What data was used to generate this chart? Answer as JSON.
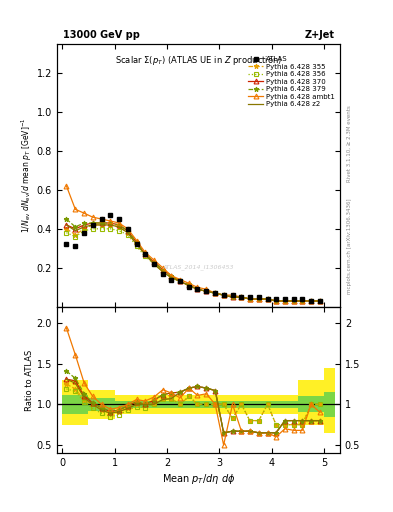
{
  "title_top": "13000 GeV pp",
  "title_right": "Z+Jet",
  "plot_title": "Scalar Σ(p_{T}) (ATLAS UE in Z production)",
  "ylabel_main": "1/N_{ev} dN_{ev}/d mean p_T [GeV]^{-1}",
  "ylabel_ratio": "Ratio to ATLAS",
  "xlabel": "Mean p_T/dη dϕ",
  "right_label_top": "Rivet 3.1.10, ≥ 2.3M events",
  "right_label_bottom": "mcplots.cern.ch [arXiv:1306.3436]",
  "watermark": "ATLAS_2014_I1306453",
  "xdata": [
    0.08,
    0.25,
    0.42,
    0.58,
    0.75,
    0.92,
    1.08,
    1.25,
    1.42,
    1.58,
    1.75,
    1.92,
    2.08,
    2.25,
    2.42,
    2.58,
    2.75,
    2.92,
    3.08,
    3.25,
    3.42,
    3.58,
    3.75,
    3.92,
    4.08,
    4.25,
    4.42,
    4.58,
    4.75,
    4.92
  ],
  "atlas_y": [
    0.32,
    0.31,
    0.38,
    0.42,
    0.45,
    0.47,
    0.45,
    0.4,
    0.32,
    0.27,
    0.22,
    0.17,
    0.14,
    0.13,
    0.1,
    0.09,
    0.08,
    0.07,
    0.06,
    0.06,
    0.05,
    0.05,
    0.05,
    0.04,
    0.04,
    0.04,
    0.04,
    0.04,
    0.03,
    0.03
  ],
  "py355_y": [
    0.4,
    0.37,
    0.4,
    0.42,
    0.42,
    0.42,
    0.41,
    0.38,
    0.32,
    0.27,
    0.22,
    0.18,
    0.15,
    0.13,
    0.11,
    0.09,
    0.08,
    0.07,
    0.06,
    0.05,
    0.05,
    0.04,
    0.04,
    0.04,
    0.03,
    0.03,
    0.03,
    0.03,
    0.03,
    0.03
  ],
  "py356_y": [
    0.38,
    0.36,
    0.39,
    0.4,
    0.4,
    0.4,
    0.39,
    0.37,
    0.31,
    0.26,
    0.22,
    0.18,
    0.15,
    0.13,
    0.11,
    0.09,
    0.08,
    0.07,
    0.06,
    0.05,
    0.05,
    0.04,
    0.04,
    0.04,
    0.03,
    0.03,
    0.03,
    0.03,
    0.03,
    0.03
  ],
  "py370_y": [
    0.42,
    0.4,
    0.42,
    0.43,
    0.43,
    0.43,
    0.42,
    0.39,
    0.33,
    0.27,
    0.23,
    0.19,
    0.16,
    0.13,
    0.11,
    0.09,
    0.08,
    0.07,
    0.06,
    0.05,
    0.05,
    0.04,
    0.04,
    0.04,
    0.03,
    0.03,
    0.03,
    0.03,
    0.03,
    0.03
  ],
  "py379_y": [
    0.45,
    0.41,
    0.43,
    0.43,
    0.43,
    0.43,
    0.42,
    0.39,
    0.33,
    0.27,
    0.23,
    0.19,
    0.16,
    0.13,
    0.11,
    0.09,
    0.08,
    0.07,
    0.06,
    0.05,
    0.05,
    0.04,
    0.04,
    0.04,
    0.03,
    0.03,
    0.03,
    0.03,
    0.03,
    0.03
  ],
  "py_ambt1_y": [
    0.62,
    0.5,
    0.48,
    0.46,
    0.45,
    0.44,
    0.43,
    0.4,
    0.34,
    0.28,
    0.24,
    0.2,
    0.16,
    0.14,
    0.12,
    0.1,
    0.09,
    0.07,
    0.06,
    0.06,
    0.05,
    0.04,
    0.04,
    0.04,
    0.03,
    0.03,
    0.03,
    0.03,
    0.03,
    0.03
  ],
  "py_z2_y": [
    0.42,
    0.39,
    0.41,
    0.42,
    0.42,
    0.42,
    0.41,
    0.38,
    0.32,
    0.27,
    0.22,
    0.18,
    0.15,
    0.13,
    0.11,
    0.09,
    0.08,
    0.07,
    0.06,
    0.05,
    0.05,
    0.04,
    0.04,
    0.04,
    0.03,
    0.03,
    0.03,
    0.03,
    0.03,
    0.03
  ],
  "ratio355": [
    1.25,
    1.19,
    1.05,
    1.0,
    0.93,
    0.89,
    0.91,
    0.95,
    1.0,
    1.0,
    1.0,
    1.06,
    1.07,
    1.0,
    1.1,
    1.0,
    1.0,
    1.0,
    1.0,
    0.83,
    1.0,
    0.8,
    0.8,
    1.0,
    0.75,
    0.75,
    0.75,
    0.75,
    1.0,
    1.0
  ],
  "ratio356": [
    1.19,
    1.16,
    1.03,
    0.95,
    0.89,
    0.85,
    0.87,
    0.93,
    0.97,
    0.96,
    1.0,
    1.06,
    1.07,
    1.0,
    1.1,
    1.0,
    1.0,
    1.0,
    1.0,
    0.83,
    1.0,
    0.8,
    0.8,
    1.0,
    0.75,
    0.75,
    0.75,
    0.75,
    1.0,
    1.0
  ],
  "ratio370": [
    1.31,
    1.29,
    1.1,
    1.02,
    0.96,
    0.91,
    0.93,
    0.98,
    1.03,
    1.0,
    1.05,
    1.12,
    1.14,
    1.15,
    1.2,
    1.22,
    1.2,
    1.17,
    0.65,
    0.67,
    0.67,
    0.67,
    0.65,
    0.65,
    0.65,
    0.8,
    0.8,
    0.8,
    0.8,
    0.8
  ],
  "ratio379": [
    1.41,
    1.32,
    1.13,
    1.02,
    0.96,
    0.91,
    0.93,
    0.98,
    1.03,
    1.0,
    1.05,
    1.12,
    1.14,
    1.15,
    1.2,
    1.22,
    1.2,
    1.17,
    0.65,
    0.67,
    0.67,
    0.67,
    0.65,
    0.65,
    0.65,
    0.8,
    0.8,
    0.8,
    0.8,
    0.8
  ],
  "ratio_ambt1": [
    1.94,
    1.61,
    1.26,
    1.1,
    1.0,
    0.94,
    0.96,
    1.0,
    1.06,
    1.04,
    1.09,
    1.18,
    1.14,
    1.08,
    1.2,
    1.11,
    1.13,
    1.0,
    0.5,
    1.0,
    0.67,
    0.67,
    0.65,
    0.65,
    0.6,
    0.7,
    0.68,
    0.68,
    1.0,
    0.9
  ],
  "ratio_z2": [
    1.31,
    1.26,
    1.08,
    1.0,
    0.93,
    0.89,
    0.91,
    0.95,
    1.0,
    1.0,
    1.0,
    1.06,
    1.07,
    1.15,
    1.2,
    1.22,
    1.2,
    1.17,
    0.65,
    0.67,
    0.67,
    0.67,
    0.65,
    0.65,
    0.65,
    0.8,
    0.8,
    0.8,
    0.8,
    0.8
  ],
  "band_x": [
    0.0,
    0.5,
    1.0,
    1.5,
    2.0,
    2.5,
    3.0,
    3.5,
    4.0,
    4.5,
    5.0,
    5.2
  ],
  "band_yellow_lo": [
    0.75,
    0.82,
    0.88,
    0.88,
    0.88,
    0.88,
    0.88,
    0.88,
    0.88,
    0.75,
    0.65,
    0.6
  ],
  "band_yellow_hi": [
    1.3,
    1.18,
    1.12,
    1.12,
    1.12,
    1.12,
    1.12,
    1.12,
    1.12,
    1.3,
    1.45,
    1.5
  ],
  "band_green_lo": [
    0.88,
    0.92,
    0.96,
    0.96,
    0.96,
    0.96,
    0.96,
    0.96,
    0.96,
    0.9,
    0.85,
    0.82
  ],
  "band_green_hi": [
    1.12,
    1.08,
    1.04,
    1.04,
    1.04,
    1.04,
    1.04,
    1.04,
    1.04,
    1.1,
    1.15,
    1.2
  ],
  "color_355": "#e8a000",
  "color_356": "#99bb00",
  "color_370": "#cc2200",
  "color_379": "#7a9900",
  "color_ambt1": "#f07800",
  "color_z2": "#887700",
  "ylim_main": [
    0.0,
    1.35
  ],
  "ylim_main_ticks": [
    0.2,
    0.4,
    0.6,
    0.8,
    1.0,
    1.2
  ],
  "ylim_ratio": [
    0.4,
    2.2
  ],
  "yticks_ratio": [
    0.5,
    1.0,
    1.5,
    2.0
  ],
  "xlim": [
    -0.1,
    5.3
  ],
  "xticks": [
    0,
    1,
    2,
    3,
    4,
    5
  ]
}
